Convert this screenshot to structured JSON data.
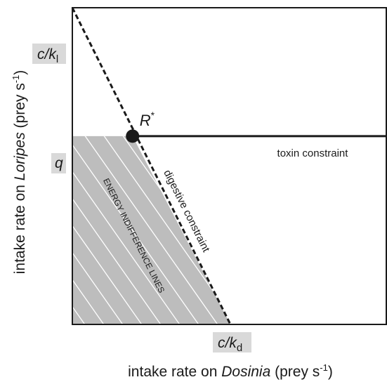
{
  "chart_data": {
    "type": "line",
    "title": "",
    "xlabel": {
      "prefix": "intake rate on ",
      "italic": "Dosinia",
      "suffix_pre": " (prey s",
      "sup": "-1",
      "suffix_post": ")"
    },
    "ylabel": {
      "prefix": "intake rate on ",
      "italic": "Loripes",
      "suffix_pre": " (prey s",
      "sup": "-1",
      "suffix_post": ")"
    },
    "x_tick": {
      "main": "c/k",
      "sub": "d"
    },
    "y_ticks": [
      {
        "main": "c/k",
        "sub": "l"
      },
      {
        "main": "q"
      }
    ],
    "xlim": [
      0,
      1.986
    ],
    "ylim": [
      0,
      1.682
    ],
    "constraints": {
      "c_over_kd": 1.0,
      "c_over_kl": 1.682,
      "q": 1.0
    },
    "series": [
      {
        "label": "toxin constraint",
        "style": "solid",
        "x": [
          0.3809,
          1.986
        ],
        "y": [
          1.0,
          1.0
        ]
      },
      {
        "label": "digestive constraint",
        "style": "dashed",
        "x": [
          0.0,
          1.0
        ],
        "y": [
          1.682,
          0.0
        ]
      }
    ],
    "optimum": {
      "label": "R",
      "sup": "*",
      "x": 0.3809,
      "y": 1.0
    },
    "region": {
      "label": "ENERGY INDIFFERENCE LINES",
      "fill": "#bdbdbd",
      "hatch_color": "#ffffff"
    }
  }
}
